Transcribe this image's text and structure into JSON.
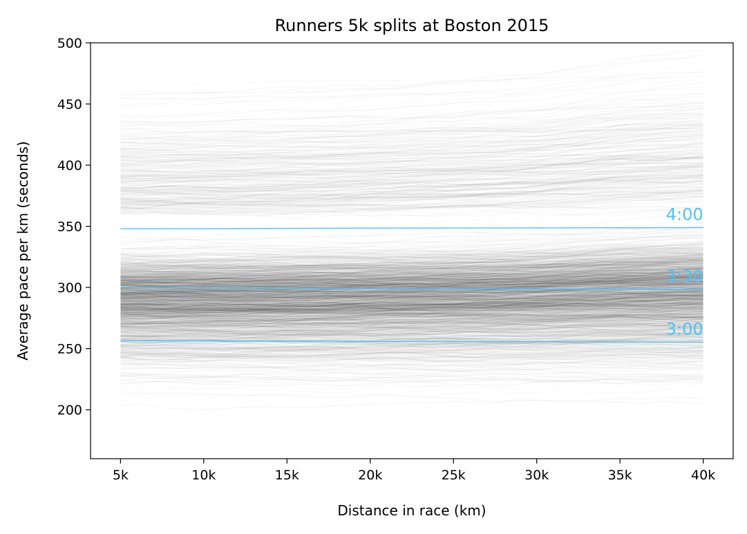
{
  "chart_data": {
    "type": "line",
    "title": "Runners 5k splits at Boston 2015",
    "xlabel": "Distance in race (km)",
    "ylabel": "Average pace per km (seconds)",
    "x": [
      5,
      10,
      15,
      20,
      25,
      30,
      35,
      40
    ],
    "x_tick_labels": [
      "5k",
      "10k",
      "15k",
      "20k",
      "25k",
      "30k",
      "35k",
      "40k"
    ],
    "xlim": [
      3.2,
      41.8
    ],
    "ylim": [
      160,
      500
    ],
    "y_ticks": [
      200,
      250,
      300,
      350,
      400,
      450,
      500
    ],
    "grid": false,
    "background_traces_color": "#000000",
    "reference_color": "#4fc3f7",
    "reference_lines": [
      {
        "label": "4:00",
        "values": [
          348,
          348,
          348.3,
          348.5,
          348.6,
          348.7,
          348.8,
          349
        ]
      },
      {
        "label": "3:30",
        "values": [
          300,
          299.6,
          299.3,
          299,
          298.8,
          298.7,
          298.6,
          298.5
        ]
      },
      {
        "label": "3:00",
        "values": [
          256.5,
          256.3,
          256.1,
          255.9,
          255.7,
          255.6,
          255.5,
          255.3
        ]
      }
    ]
  }
}
